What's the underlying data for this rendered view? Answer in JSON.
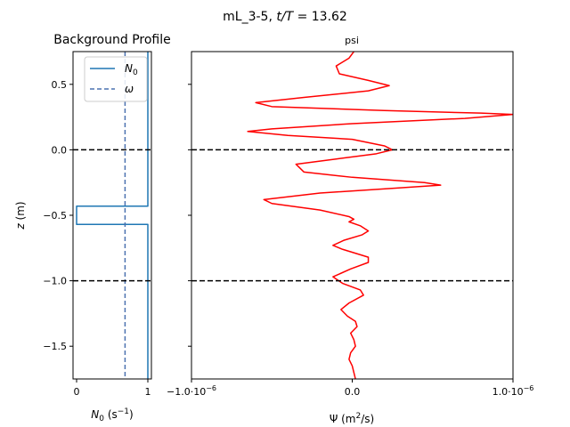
{
  "suptitle": {
    "run": "mL_3-5,",
    "tvar": "t/T",
    "eq": "= 13.62"
  },
  "chart_data": [
    {
      "type": "line",
      "title": "Background Profile",
      "xlabel": "N₀ (s⁻¹)",
      "xlabel_parts": {
        "main": "N",
        "sub": "0",
        "units": " (s",
        "sup": "−1",
        "close": ")"
      },
      "ylabel": "z (m)",
      "ylabel_parts": {
        "var": "z",
        "units": " (m)"
      },
      "xlim": [
        -0.05,
        1.05
      ],
      "ylim": [
        -1.75,
        0.75
      ],
      "x_ticks": [
        {
          "value": 0,
          "label": "0"
        },
        {
          "value": 1,
          "label": "1"
        }
      ],
      "y_ticks": [
        {
          "value": 0.5,
          "label": "0.5"
        },
        {
          "value": 0.0,
          "label": "0.0"
        },
        {
          "value": -0.5,
          "label": "−0.5"
        },
        {
          "value": -1.0,
          "label": "−1.0"
        },
        {
          "value": -1.5,
          "label": "−1.5"
        }
      ],
      "series": [
        {
          "name": "N₀",
          "name_parts": {
            "main": "N",
            "sub": "0"
          },
          "color": "#1f77b4",
          "style": "solid",
          "x": [
            1,
            1,
            0,
            0,
            1,
            1
          ],
          "y": [
            0.75,
            -0.43,
            -0.43,
            -0.57,
            -0.57,
            -1.75
          ]
        },
        {
          "name": "ω",
          "color": "#4c72b0",
          "style": "dashed",
          "x": [
            0.68,
            0.68
          ],
          "y": [
            0.75,
            -1.75
          ]
        }
      ],
      "hlines": [
        {
          "y": 0.0,
          "color": "#000000",
          "style": "dashed"
        },
        {
          "y": -1.0,
          "color": "#000000",
          "style": "dashed"
        }
      ],
      "legend": "top-right"
    },
    {
      "type": "line",
      "title": "psi",
      "xlabel": "Ψ (m²/s)",
      "xlabel_parts": {
        "main": "Ψ",
        "units": " (m",
        "sup": "2",
        "close": "/s)"
      },
      "xlim": [
        -1e-06,
        1e-06
      ],
      "ylim": [
        -1.75,
        0.75
      ],
      "x_ticks": [
        {
          "value": -1e-06,
          "label_main": "−1.0·10",
          "label_sup": "−6"
        },
        {
          "value": 0,
          "label_main": "0.0",
          "label_sup": ""
        },
        {
          "value": 1e-06,
          "label_main": "1.0·10",
          "label_sup": "−6"
        }
      ],
      "series": [
        {
          "name": "psi",
          "color": "#ff0000",
          "style": "solid",
          "points": [
            [
              1e-08,
              0.75
            ],
            [
              -2e-08,
              0.7
            ],
            [
              -1e-07,
              0.64
            ],
            [
              -8e-08,
              0.58
            ],
            [
              1e-07,
              0.53
            ],
            [
              2.3e-07,
              0.49
            ],
            [
              1e-07,
              0.45
            ],
            [
              -3e-07,
              0.4
            ],
            [
              -6e-07,
              0.36
            ],
            [
              -5e-07,
              0.33
            ],
            [
              2e-07,
              0.3
            ],
            [
              8e-07,
              0.28
            ],
            [
              1e-06,
              0.27
            ],
            [
              7e-07,
              0.24
            ],
            [
              0,
              0.2
            ],
            [
              -5e-07,
              0.16
            ],
            [
              -6.5e-07,
              0.14
            ],
            [
              -4e-07,
              0.11
            ],
            [
              0,
              0.08
            ],
            [
              2e-07,
              0.03
            ],
            [
              2.5e-07,
              0
            ],
            [
              1.5e-07,
              -0.03
            ],
            [
              -1e-07,
              -0.07
            ],
            [
              -3.5e-07,
              -0.11
            ],
            [
              -3e-07,
              -0.17
            ],
            [
              0,
              -0.21
            ],
            [
              4.5e-07,
              -0.25
            ],
            [
              5.5e-07,
              -0.27
            ],
            [
              3e-07,
              -0.29
            ],
            [
              -2e-07,
              -0.33
            ],
            [
              -5.5e-07,
              -0.38
            ],
            [
              -5e-07,
              -0.41
            ],
            [
              -2e-07,
              -0.46
            ],
            [
              -2e-08,
              -0.51
            ],
            [
              1e-08,
              -0.53
            ],
            [
              -2e-08,
              -0.55
            ],
            [
              5e-08,
              -0.58
            ],
            [
              1e-07,
              -0.62
            ],
            [
              6e-08,
              -0.65
            ],
            [
              -5e-08,
              -0.69
            ],
            [
              -1.2e-07,
              -0.73
            ],
            [
              -6e-08,
              -0.76
            ],
            [
              1e-07,
              -0.82
            ],
            [
              1e-07,
              -0.86
            ],
            [
              -1e-08,
              -0.91
            ],
            [
              -1.2e-07,
              -0.97
            ],
            [
              -6e-08,
              -1.02
            ],
            [
              5e-08,
              -1.07
            ],
            [
              7e-08,
              -1.11
            ],
            [
              -2e-08,
              -1.17
            ],
            [
              -7e-08,
              -1.22
            ],
            [
              -3e-08,
              -1.27
            ],
            [
              2e-08,
              -1.31
            ],
            [
              3e-08,
              -1.35
            ],
            [
              -1e-08,
              -1.4
            ],
            [
              1e-08,
              -1.45
            ],
            [
              2e-08,
              -1.5
            ],
            [
              -1e-08,
              -1.55
            ],
            [
              -2e-08,
              -1.6
            ],
            [
              0,
              -1.65
            ],
            [
              1e-08,
              -1.7
            ],
            [
              2e-08,
              -1.75
            ]
          ]
        }
      ],
      "hlines": [
        {
          "y": 0.0,
          "color": "#000000",
          "style": "dashed"
        },
        {
          "y": -1.0,
          "color": "#000000",
          "style": "dashed"
        }
      ]
    }
  ]
}
